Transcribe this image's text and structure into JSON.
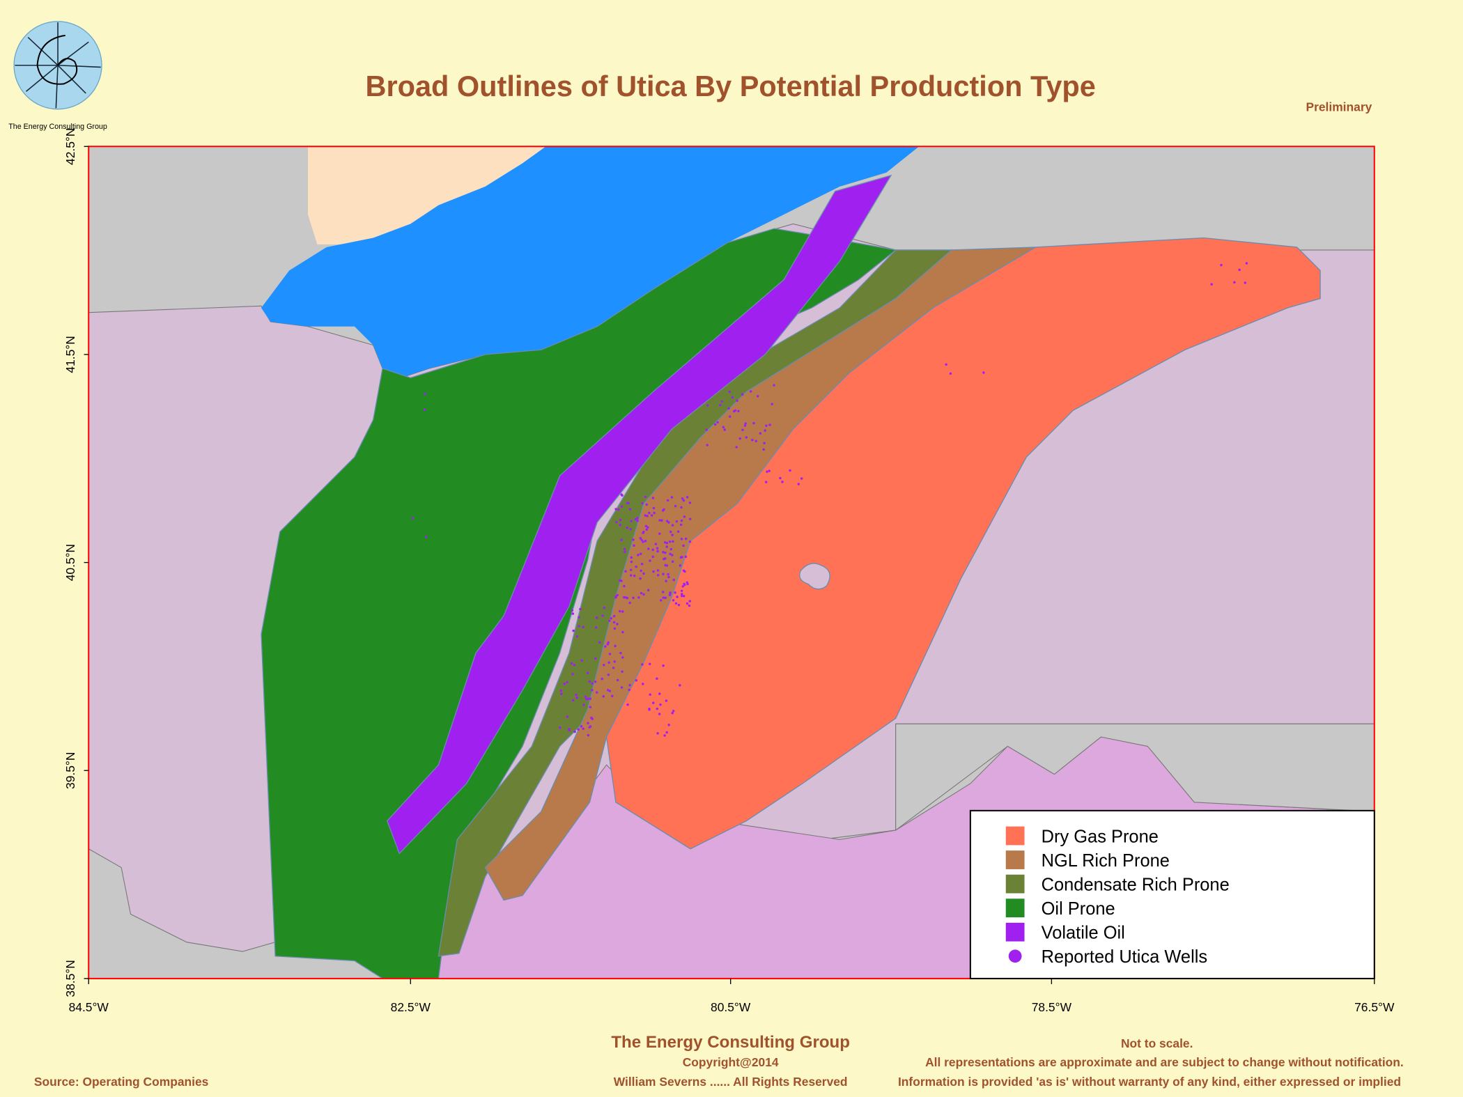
{
  "logo_caption": "The Energy Consulting Group",
  "title": "Broad Outlines of Utica By Potential Production Type",
  "status": "Preliminary",
  "latitude_labels": [
    "42.5°N",
    "41.5°N",
    "40.5°N",
    "39.5°N",
    "38.5°N"
  ],
  "longitude_labels": [
    "84.5°W",
    "82.5°W",
    "80.5°W",
    "78.5°W",
    "76.5°W"
  ],
  "legend": [
    {
      "label": "Dry Gas Prone",
      "color": "#ff7256"
    },
    {
      "label": "NGL Rich Prone",
      "color": "#b87a4a"
    },
    {
      "label": "Condensate Rich Prone",
      "color": "#6b8236"
    },
    {
      "label": "Oil Prone",
      "color": "#228b22"
    },
    {
      "label": "Volatile Oil",
      "color": "#a020f0"
    },
    {
      "label": "Reported Utica Wells",
      "color": "#a020f0"
    }
  ],
  "footer": {
    "organization": "The Energy Consulting Group",
    "copyright": "Copyright@2014",
    "author": "William Severns ...... All Rights Reserved",
    "source": "Source: Operating Companies",
    "notes": [
      "Not to scale.",
      "All representations are approximate and are subject to change without notification.",
      "Information is provided 'as is' without warranty of any kind, either expressed or implied"
    ]
  }
}
